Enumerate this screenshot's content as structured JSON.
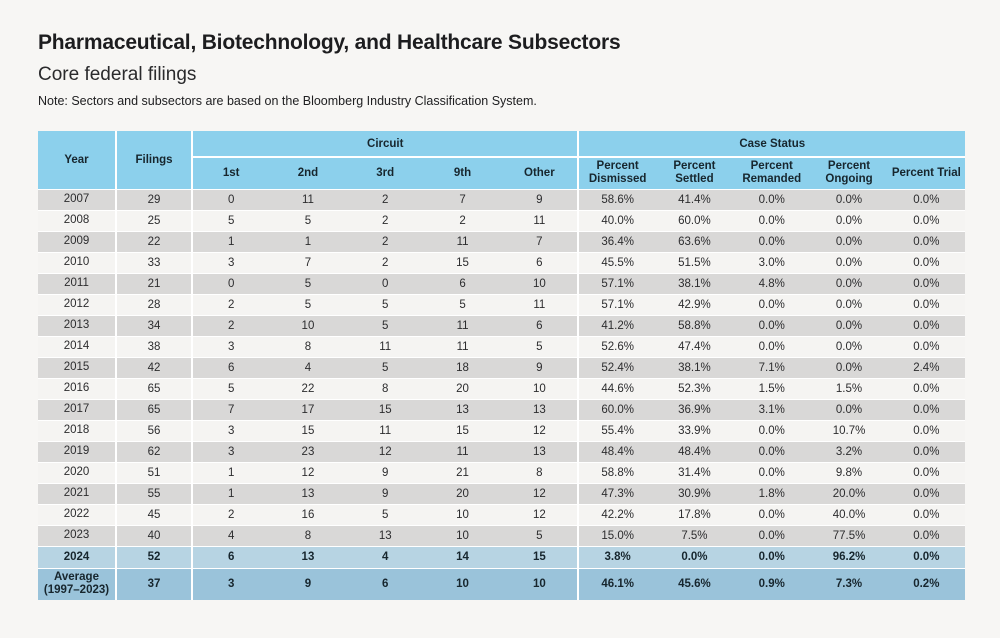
{
  "page": {
    "title": "Pharmaceutical, Biotechnology, and Healthcare Subsectors",
    "subtitle": "Core federal filings",
    "note": "Note: Sectors and subsectors are based on the Bloomberg Industry Classification System."
  },
  "colors": {
    "page_bg": "#f7f6f4",
    "header_blue": "#8cd0ec",
    "row_gray": "#d9d8d7",
    "row_light": "#f5f4f2",
    "row_2024": "#b7d4e3",
    "row_average": "#9ac3da"
  },
  "chart_data": {
    "type": "table",
    "title": "Pharmaceutical, Biotechnology, and Healthcare Subsectors — Core federal filings"
  },
  "table": {
    "headers": {
      "year": "Year",
      "filings": "Filings",
      "circuit_group": "Circuit",
      "circuit_cols": [
        "1st",
        "2nd",
        "3rd",
        "9th",
        "Other"
      ],
      "status_group": "Case Status",
      "status_cols": [
        "Percent Dismissed",
        "Percent Settled",
        "Percent Remanded",
        "Percent Ongoing",
        "Percent Trial"
      ]
    },
    "rows": [
      {
        "kind": "year",
        "year": "2007",
        "filings": "29",
        "circuit": [
          "0",
          "11",
          "2",
          "7",
          "9"
        ],
        "status": [
          "58.6%",
          "41.4%",
          "0.0%",
          "0.0%",
          "0.0%"
        ]
      },
      {
        "kind": "year",
        "year": "2008",
        "filings": "25",
        "circuit": [
          "5",
          "5",
          "2",
          "2",
          "11"
        ],
        "status": [
          "40.0%",
          "60.0%",
          "0.0%",
          "0.0%",
          "0.0%"
        ]
      },
      {
        "kind": "year",
        "year": "2009",
        "filings": "22",
        "circuit": [
          "1",
          "1",
          "2",
          "11",
          "7"
        ],
        "status": [
          "36.4%",
          "63.6%",
          "0.0%",
          "0.0%",
          "0.0%"
        ]
      },
      {
        "kind": "year",
        "year": "2010",
        "filings": "33",
        "circuit": [
          "3",
          "7",
          "2",
          "15",
          "6"
        ],
        "status": [
          "45.5%",
          "51.5%",
          "3.0%",
          "0.0%",
          "0.0%"
        ]
      },
      {
        "kind": "year",
        "year": "2011",
        "filings": "21",
        "circuit": [
          "0",
          "5",
          "0",
          "6",
          "10"
        ],
        "status": [
          "57.1%",
          "38.1%",
          "4.8%",
          "0.0%",
          "0.0%"
        ]
      },
      {
        "kind": "year",
        "year": "2012",
        "filings": "28",
        "circuit": [
          "2",
          "5",
          "5",
          "5",
          "11"
        ],
        "status": [
          "57.1%",
          "42.9%",
          "0.0%",
          "0.0%",
          "0.0%"
        ]
      },
      {
        "kind": "year",
        "year": "2013",
        "filings": "34",
        "circuit": [
          "2",
          "10",
          "5",
          "11",
          "6"
        ],
        "status": [
          "41.2%",
          "58.8%",
          "0.0%",
          "0.0%",
          "0.0%"
        ]
      },
      {
        "kind": "year",
        "year": "2014",
        "filings": "38",
        "circuit": [
          "3",
          "8",
          "11",
          "11",
          "5"
        ],
        "status": [
          "52.6%",
          "47.4%",
          "0.0%",
          "0.0%",
          "0.0%"
        ]
      },
      {
        "kind": "year",
        "year": "2015",
        "filings": "42",
        "circuit": [
          "6",
          "4",
          "5",
          "18",
          "9"
        ],
        "status": [
          "52.4%",
          "38.1%",
          "7.1%",
          "0.0%",
          "2.4%"
        ]
      },
      {
        "kind": "year",
        "year": "2016",
        "filings": "65",
        "circuit": [
          "5",
          "22",
          "8",
          "20",
          "10"
        ],
        "status": [
          "44.6%",
          "52.3%",
          "1.5%",
          "1.5%",
          "0.0%"
        ]
      },
      {
        "kind": "year",
        "year": "2017",
        "filings": "65",
        "circuit": [
          "7",
          "17",
          "15",
          "13",
          "13"
        ],
        "status": [
          "60.0%",
          "36.9%",
          "3.1%",
          "0.0%",
          "0.0%"
        ]
      },
      {
        "kind": "year",
        "year": "2018",
        "filings": "56",
        "circuit": [
          "3",
          "15",
          "11",
          "15",
          "12"
        ],
        "status": [
          "55.4%",
          "33.9%",
          "0.0%",
          "10.7%",
          "0.0%"
        ]
      },
      {
        "kind": "year",
        "year": "2019",
        "filings": "62",
        "circuit": [
          "3",
          "23",
          "12",
          "11",
          "13"
        ],
        "status": [
          "48.4%",
          "48.4%",
          "0.0%",
          "3.2%",
          "0.0%"
        ]
      },
      {
        "kind": "year",
        "year": "2020",
        "filings": "51",
        "circuit": [
          "1",
          "12",
          "9",
          "21",
          "8"
        ],
        "status": [
          "58.8%",
          "31.4%",
          "0.0%",
          "9.8%",
          "0.0%"
        ]
      },
      {
        "kind": "year",
        "year": "2021",
        "filings": "55",
        "circuit": [
          "1",
          "13",
          "9",
          "20",
          "12"
        ],
        "status": [
          "47.3%",
          "30.9%",
          "1.8%",
          "20.0%",
          "0.0%"
        ]
      },
      {
        "kind": "year",
        "year": "2022",
        "filings": "45",
        "circuit": [
          "2",
          "16",
          "5",
          "10",
          "12"
        ],
        "status": [
          "42.2%",
          "17.8%",
          "0.0%",
          "40.0%",
          "0.0%"
        ]
      },
      {
        "kind": "year",
        "year": "2023",
        "filings": "40",
        "circuit": [
          "4",
          "8",
          "13",
          "10",
          "5"
        ],
        "status": [
          "15.0%",
          "7.5%",
          "0.0%",
          "77.5%",
          "0.0%"
        ]
      },
      {
        "kind": "current",
        "year": "2024",
        "filings": "52",
        "circuit": [
          "6",
          "13",
          "4",
          "14",
          "15"
        ],
        "status": [
          "3.8%",
          "0.0%",
          "0.0%",
          "96.2%",
          "0.0%"
        ]
      },
      {
        "kind": "average",
        "year": "Average (1997–2023)",
        "filings": "37",
        "circuit": [
          "3",
          "9",
          "6",
          "10",
          "10"
        ],
        "status": [
          "46.1%",
          "45.6%",
          "0.9%",
          "7.3%",
          "0.2%"
        ]
      }
    ]
  }
}
